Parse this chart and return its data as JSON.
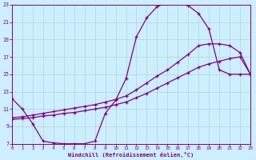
{
  "xlabel": "Windchill (Refroidissement éolien,°C)",
  "bg_color": "#cceeff",
  "line_color": "#800080",
  "grid_color": "#b0d8cc",
  "xlim": [
    0,
    23
  ],
  "ylim": [
    7,
    23
  ],
  "xticks": [
    0,
    1,
    2,
    3,
    4,
    5,
    6,
    7,
    8,
    9,
    10,
    11,
    12,
    13,
    14,
    15,
    16,
    17,
    18,
    19,
    20,
    21,
    22,
    23
  ],
  "yticks": [
    7,
    9,
    11,
    13,
    15,
    17,
    19,
    21,
    23
  ],
  "line1_x": [
    0,
    1,
    2,
    3,
    4,
    5,
    6,
    7,
    8,
    9,
    10,
    11,
    12,
    13,
    14,
    15,
    16,
    17,
    18,
    19,
    20,
    21,
    22,
    23
  ],
  "line1_y": [
    12.2,
    11.0,
    9.3,
    7.3,
    7.1,
    7.0,
    7.0,
    7.0,
    7.3,
    10.5,
    12.0,
    14.5,
    19.3,
    21.5,
    22.8,
    23.2,
    23.2,
    22.9,
    22.0,
    20.2,
    15.5,
    15.0,
    15.0,
    15.0
  ],
  "line2_x": [
    0,
    1,
    2,
    3,
    4,
    5,
    6,
    7,
    8,
    9,
    10,
    11,
    12,
    13,
    14,
    15,
    16,
    17,
    18,
    19,
    20,
    21,
    22,
    23
  ],
  "line2_y": [
    10.0,
    10.1,
    10.3,
    10.5,
    10.7,
    10.9,
    11.1,
    11.3,
    11.5,
    11.8,
    12.1,
    12.5,
    13.2,
    14.0,
    14.8,
    15.5,
    16.4,
    17.3,
    18.3,
    18.5,
    18.5,
    18.3,
    17.5,
    15.0
  ],
  "line3_x": [
    0,
    1,
    2,
    3,
    4,
    5,
    6,
    7,
    8,
    9,
    10,
    11,
    12,
    13,
    14,
    15,
    16,
    17,
    18,
    19,
    20,
    21,
    22,
    23
  ],
  "line3_y": [
    9.8,
    9.9,
    10.0,
    10.2,
    10.3,
    10.5,
    10.6,
    10.8,
    11.0,
    11.2,
    11.5,
    11.8,
    12.3,
    12.8,
    13.4,
    14.0,
    14.6,
    15.2,
    15.8,
    16.2,
    16.5,
    16.8,
    17.0,
    15.0
  ]
}
